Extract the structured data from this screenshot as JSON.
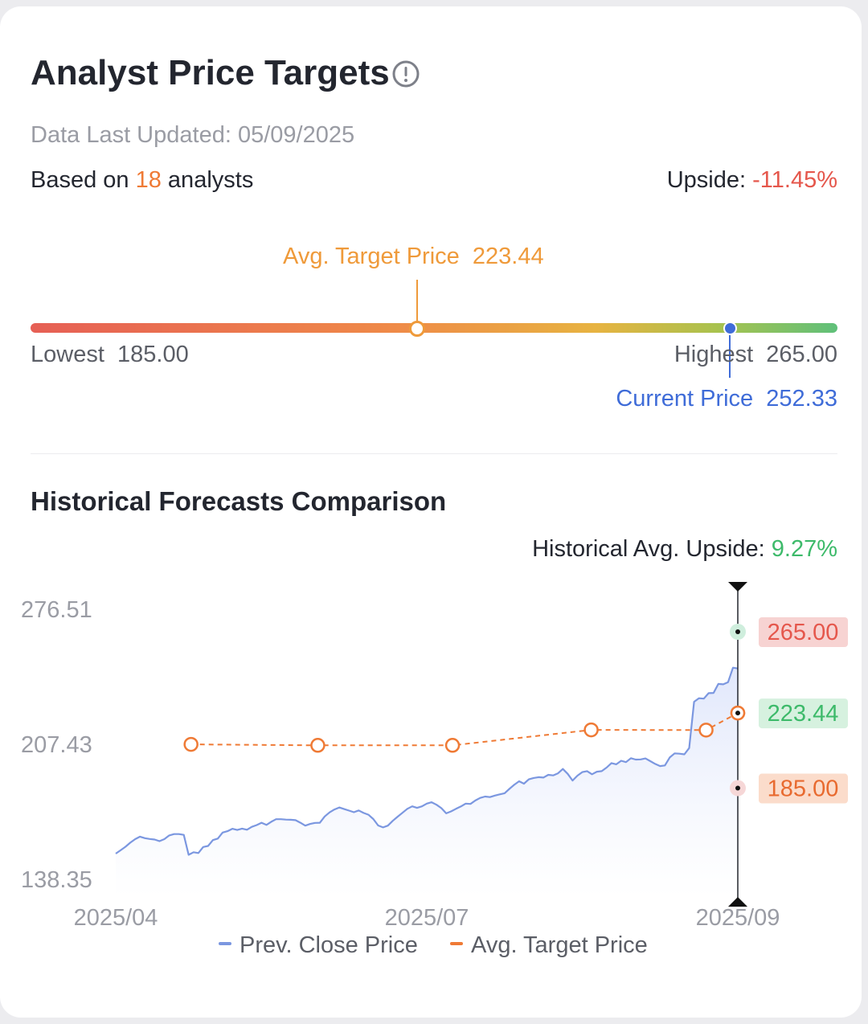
{
  "title": "Analyst Price Targets",
  "data_updated": "Data Last Updated: 05/09/2025",
  "based_on": {
    "prefix": "Based on ",
    "count": "18",
    "suffix": " analysts"
  },
  "upside": {
    "label": "Upside: ",
    "value": "-11.45%"
  },
  "range": {
    "avg_label": "Avg. Target Price",
    "avg_value": "223.44",
    "lowest_label": "Lowest",
    "lowest_value": "185.00",
    "highest_label": "Highest",
    "highest_value": "265.00",
    "current_label": "Current Price",
    "current_value": "252.33",
    "avg_position_pct": 47.9,
    "current_position_pct": 84.2
  },
  "historical": {
    "title": "Historical Forecasts Comparison",
    "upside_label": "Historical Avg. Upside: ",
    "upside_value": "9.27%"
  },
  "legend": {
    "close": "Prev. Close Price",
    "target": "Avg. Target Price"
  },
  "colors": {
    "close_line": "#7b97e0",
    "target_line": "#ef7a35",
    "high_badge_bg": "#f7d3d2",
    "high_badge_text": "#e5574c",
    "avg_badge_bg": "#d6f1df",
    "avg_badge_text": "#3dba6a",
    "low_badge_bg": "#fbdccb",
    "low_badge_text": "#e86a2f"
  },
  "chart_data": {
    "type": "line",
    "y_ticks": [
      "276.51",
      "207.43",
      "138.35"
    ],
    "ylim": [
      138.35,
      276.51
    ],
    "x_ticks": [
      "2025/04",
      "2025/07",
      "2025/09"
    ],
    "x_tick_index": [
      0,
      64,
      128
    ],
    "x_count": 129,
    "series": [
      {
        "name": "Prev. Close Price",
        "values": [
          151.5,
          153.2,
          155.0,
          157.1,
          158.9,
          160.2,
          159.4,
          159.0,
          158.7,
          157.9,
          158.9,
          160.8,
          161.5,
          161.5,
          161.1,
          150.9,
          152.2,
          151.8,
          154.9,
          155.4,
          158.4,
          159.2,
          162.3,
          163.0,
          164.2,
          163.6,
          164.3,
          163.7,
          165.2,
          166.1,
          167.3,
          166.2,
          167.8,
          169.1,
          169.1,
          168.9,
          168.8,
          168.6,
          167.3,
          165.8,
          166.7,
          167.2,
          167.3,
          170.5,
          172.6,
          174.1,
          175.1,
          174.3,
          173.5,
          172.7,
          173.6,
          172.3,
          171.4,
          169.2,
          165.9,
          164.9,
          165.8,
          168.3,
          170.4,
          172.4,
          174.4,
          175.7,
          174.9,
          175.7,
          177.1,
          177.8,
          176.5,
          174.8,
          172.1,
          173.1,
          174.4,
          175.6,
          177.1,
          176.9,
          178.7,
          180.0,
          180.7,
          180.4,
          181.2,
          181.8,
          182.4,
          184.6,
          186.7,
          188.5,
          187.3,
          189.5,
          190.2,
          190.6,
          190.4,
          191.8,
          191.5,
          192.6,
          194.8,
          192.3,
          188.9,
          191.4,
          193.2,
          193.7,
          192.1,
          193.4,
          193.7,
          195.5,
          197.8,
          197.2,
          199.0,
          198.3,
          200.3,
          199.6,
          199.7,
          200.2,
          198.8,
          197.4,
          196.3,
          196.6,
          200.7,
          202.8,
          202.6,
          202.3,
          205.5,
          229.2,
          231.0,
          230.8,
          233.6,
          233.7,
          238.3,
          238.1,
          239.2,
          246.6,
          246.2
        ]
      },
      {
        "name": "Avg. Target Price",
        "points": [
          {
            "x": "2025/04/20",
            "y": 207.4
          },
          {
            "x": "2025/05/22",
            "y": 206.9
          },
          {
            "x": "2025/06/25",
            "y": 206.9
          },
          {
            "x": "2025/07/30",
            "y": 214.8
          },
          {
            "x": "2025/08/28",
            "y": 214.7
          },
          {
            "x": "2025/09/05",
            "y": 223.44
          }
        ]
      }
    ],
    "markers": [
      {
        "label": "265.00",
        "y": 265.0,
        "kind": "high"
      },
      {
        "label": "223.44",
        "y": 223.44,
        "kind": "avg"
      },
      {
        "label": "185.00",
        "y": 185.0,
        "kind": "low"
      }
    ],
    "legend_position": "bottom"
  }
}
